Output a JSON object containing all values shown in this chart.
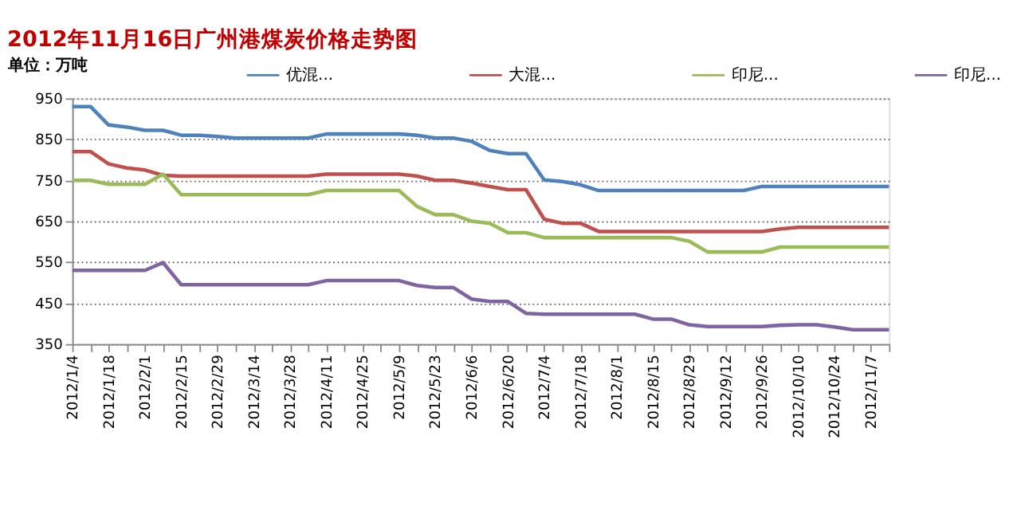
{
  "chart_data": {
    "type": "line",
    "title": "2012年11月16日广州港煤炭价格走势图",
    "ylabel": "单位：万吨",
    "categories": [
      "2012/1/4",
      null,
      "2012/1/18",
      null,
      "2012/2/1",
      null,
      "2012/2/15",
      null,
      "2012/2/29",
      null,
      "2012/3/14",
      null,
      "2012/3/28",
      null,
      "2012/4/11",
      null,
      "2012/4/25",
      null,
      "2012/5/9",
      null,
      "2012/5/23",
      null,
      "2012/6/6",
      null,
      "2012/6/20",
      null,
      "2012/7/4",
      null,
      "2012/7/18",
      null,
      "2012/8/1",
      null,
      "2012/8/15",
      null,
      "2012/8/29",
      null,
      "2012/9/12",
      null,
      "2012/9/26",
      null,
      "2012/10/10",
      null,
      "2012/10/24",
      null,
      "2012/11/7",
      null
    ],
    "series": [
      {
        "name": "优混...",
        "color": "#4f81bd",
        "values": [
          930,
          930,
          885,
          880,
          872,
          872,
          860,
          860,
          857,
          853,
          853,
          853,
          853,
          853,
          863,
          863,
          863,
          863,
          863,
          860,
          853,
          853,
          845,
          823,
          815,
          815,
          751,
          747,
          739,
          725,
          725,
          725,
          725,
          725,
          725,
          725,
          725,
          725,
          735,
          735,
          735,
          735,
          735,
          735,
          735,
          735
        ]
      },
      {
        "name": "大混...",
        "color": "#c0504d",
        "values": [
          820,
          820,
          790,
          780,
          775,
          762,
          760,
          760,
          760,
          760,
          760,
          760,
          760,
          760,
          765,
          765,
          765,
          765,
          765,
          760,
          750,
          750,
          743,
          735,
          727,
          727,
          655,
          645,
          645,
          625,
          625,
          625,
          625,
          625,
          625,
          625,
          625,
          625,
          625,
          631,
          635,
          635,
          635,
          635,
          635,
          635
        ]
      },
      {
        "name": "印尼...",
        "color": "#9bbb59",
        "values": [
          750,
          750,
          740,
          740,
          740,
          765,
          715,
          715,
          715,
          715,
          715,
          715,
          715,
          715,
          725,
          725,
          725,
          725,
          725,
          686,
          666,
          666,
          650,
          645,
          622,
          622,
          610,
          610,
          610,
          610,
          610,
          610,
          610,
          610,
          601,
          575,
          575,
          575,
          575,
          587,
          587,
          587,
          587,
          587,
          587,
          587
        ]
      },
      {
        "name": "印尼...",
        "color": "#8064a2",
        "values": [
          530,
          530,
          530,
          530,
          530,
          549,
          495,
          495,
          495,
          495,
          495,
          495,
          495,
          495,
          505,
          505,
          505,
          505,
          505,
          493,
          488,
          488,
          460,
          454,
          454,
          425,
          423,
          423,
          423,
          423,
          423,
          423,
          411,
          411,
          397,
          393,
          393,
          393,
          393,
          396,
          397,
          397,
          392,
          385,
          385,
          385
        ]
      }
    ],
    "ylim": [
      350,
      950
    ],
    "yticks": [
      350,
      450,
      550,
      650,
      750,
      850,
      950
    ],
    "grid": "y",
    "legend": "top"
  }
}
